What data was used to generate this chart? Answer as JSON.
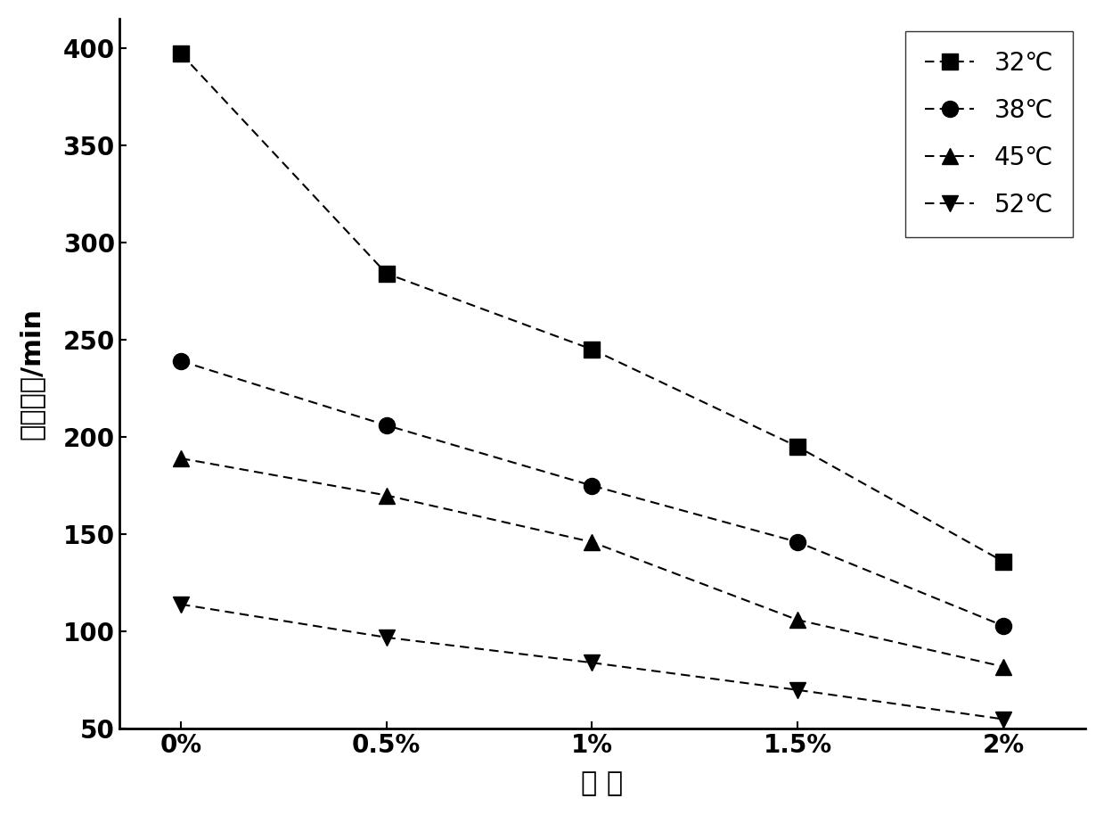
{
  "x_labels": [
    "0%",
    "0.5%",
    "1%",
    "1.5%",
    "2%"
  ],
  "x_values": [
    0,
    1,
    2,
    3,
    4
  ],
  "series": [
    {
      "label": "32℃",
      "values": [
        397,
        284,
        245,
        195,
        136
      ],
      "marker": "s",
      "color": "#000000"
    },
    {
      "label": "38℃",
      "values": [
        239,
        206,
        175,
        146,
        103
      ],
      "marker": "o",
      "color": "#000000"
    },
    {
      "label": "45℃",
      "values": [
        189,
        170,
        146,
        106,
        82
      ],
      "marker": "^",
      "color": "#000000"
    },
    {
      "label": "52℃",
      "values": [
        114,
        97,
        84,
        70,
        55
      ],
      "marker": "v",
      "color": "#000000"
    }
  ],
  "ylabel": "稠化时间/min",
  "xlabel": "加 量",
  "ylim": [
    50,
    415
  ],
  "yticks": [
    50,
    100,
    150,
    200,
    250,
    300,
    350,
    400
  ],
  "background_color": "#ffffff",
  "label_fontsize": 22,
  "tick_fontsize": 20,
  "legend_fontsize": 20,
  "marker_size": 13,
  "linewidth": 1.5
}
